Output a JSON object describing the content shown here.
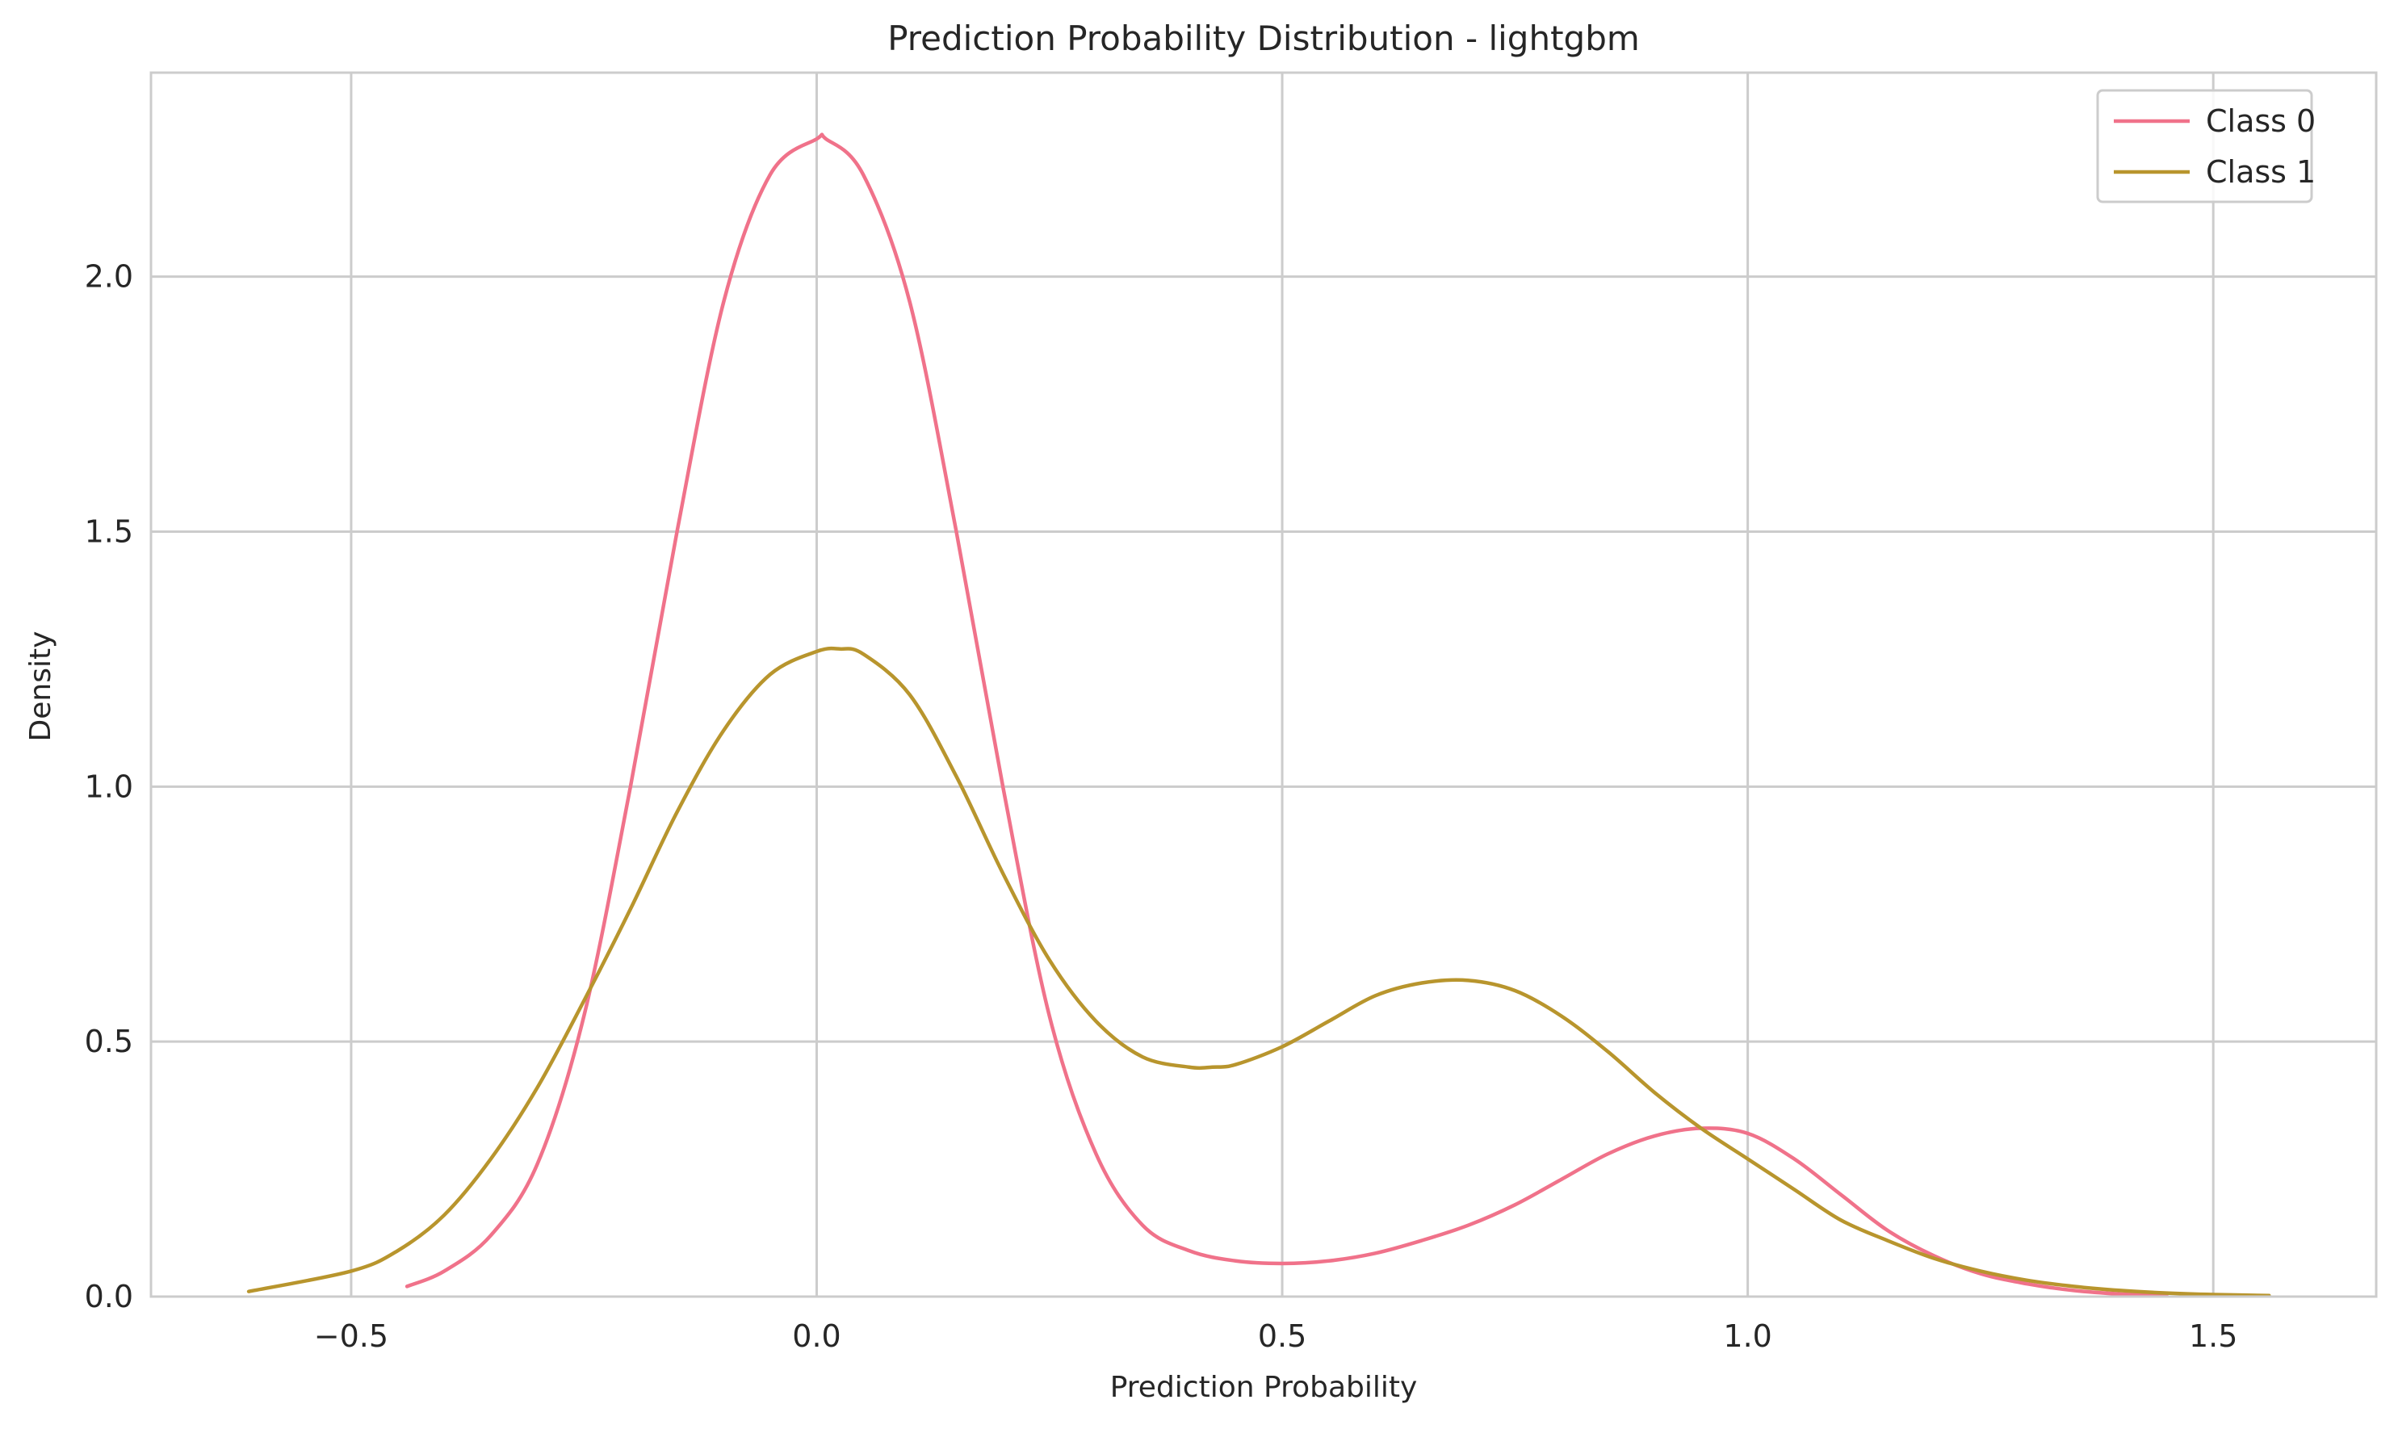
{
  "chart_data": {
    "type": "line",
    "title": "Prediction Probability Distribution - lightgbm",
    "xlabel": "Prediction Probability",
    "ylabel": "Density",
    "xlim": [
      -0.715,
      1.675
    ],
    "ylim": [
      0,
      2.4
    ],
    "xticks": [
      -0.5,
      0.0,
      0.5,
      1.0,
      1.5
    ],
    "xtick_labels": [
      "−0.5",
      "0.0",
      "0.5",
      "1.0",
      "1.5"
    ],
    "yticks": [
      0.0,
      0.5,
      1.0,
      1.5,
      2.0
    ],
    "ytick_labels": [
      "0.0",
      "0.5",
      "1.0",
      "1.5",
      "2.0"
    ],
    "grid": true,
    "legend_position": "top-right",
    "series": [
      {
        "name": "Class 0",
        "color": "#f0728a",
        "x": [
          -0.44,
          -0.4,
          -0.35,
          -0.3,
          -0.25,
          -0.2,
          -0.15,
          -0.1,
          -0.05,
          0.0,
          0.01,
          0.05,
          0.1,
          0.15,
          0.2,
          0.25,
          0.3,
          0.35,
          0.4,
          0.45,
          0.5,
          0.55,
          0.6,
          0.65,
          0.7,
          0.75,
          0.8,
          0.85,
          0.9,
          0.95,
          1.0,
          1.05,
          1.1,
          1.15,
          1.2,
          1.25,
          1.3,
          1.35,
          1.4,
          1.45
        ],
        "y": [
          0.02,
          0.05,
          0.12,
          0.26,
          0.55,
          1.0,
          1.5,
          1.95,
          2.2,
          2.27,
          2.27,
          2.2,
          1.95,
          1.5,
          1.0,
          0.55,
          0.28,
          0.14,
          0.09,
          0.07,
          0.065,
          0.07,
          0.085,
          0.11,
          0.14,
          0.18,
          0.23,
          0.28,
          0.315,
          0.33,
          0.32,
          0.27,
          0.2,
          0.13,
          0.08,
          0.045,
          0.025,
          0.012,
          0.005,
          0.002
        ]
      },
      {
        "name": "Class 1",
        "color": "#b8952d",
        "x": [
          -0.61,
          -0.5,
          -0.45,
          -0.4,
          -0.35,
          -0.3,
          -0.25,
          -0.2,
          -0.15,
          -0.1,
          -0.05,
          0.0,
          0.025,
          0.05,
          0.1,
          0.15,
          0.2,
          0.25,
          0.3,
          0.35,
          0.4,
          0.425,
          0.45,
          0.5,
          0.55,
          0.6,
          0.65,
          0.7,
          0.75,
          0.8,
          0.85,
          0.9,
          0.95,
          1.0,
          1.05,
          1.1,
          1.15,
          1.2,
          1.25,
          1.3,
          1.35,
          1.4,
          1.45,
          1.5,
          1.56
        ],
        "y": [
          0.01,
          0.05,
          0.09,
          0.16,
          0.27,
          0.41,
          0.58,
          0.76,
          0.95,
          1.11,
          1.22,
          1.265,
          1.27,
          1.26,
          1.18,
          1.02,
          0.83,
          0.66,
          0.54,
          0.47,
          0.45,
          0.45,
          0.455,
          0.49,
          0.54,
          0.59,
          0.615,
          0.62,
          0.6,
          0.55,
          0.48,
          0.4,
          0.33,
          0.27,
          0.21,
          0.15,
          0.11,
          0.075,
          0.05,
          0.032,
          0.02,
          0.012,
          0.007,
          0.004,
          0.002
        ]
      }
    ]
  }
}
